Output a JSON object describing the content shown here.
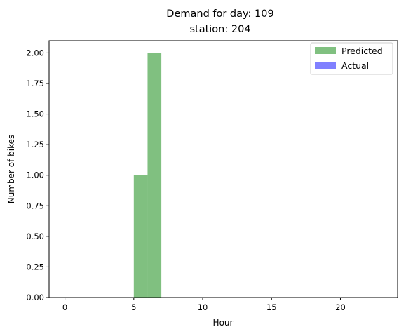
{
  "chart_data": {
    "type": "bar",
    "title_line1": "Demand for day: 109",
    "title_line2": "station: 204",
    "xlabel": "Hour",
    "ylabel": "Number of bikes",
    "xlim": [
      -1.15,
      24.15
    ],
    "ylim": [
      0,
      2.1
    ],
    "xticks": [
      0,
      5,
      10,
      15,
      20
    ],
    "xtick_labels": [
      "0",
      "5",
      "10",
      "15",
      "20"
    ],
    "yticks": [
      0,
      0.25,
      0.5,
      0.75,
      1.0,
      1.25,
      1.5,
      1.75,
      2.0
    ],
    "ytick_labels": [
      "0.00",
      "0.25",
      "0.50",
      "0.75",
      "1.00",
      "1.25",
      "1.50",
      "1.75",
      "2.00"
    ],
    "grid": false,
    "legend_position": "top-right",
    "series": [
      {
        "name": "Predicted",
        "color": "#80c080",
        "bins": [
          {
            "x0": 5,
            "x1": 6,
            "value": 1
          },
          {
            "x0": 6,
            "x1": 7,
            "value": 2
          }
        ]
      },
      {
        "name": "Actual",
        "color": "#8080ff",
        "bins": []
      }
    ]
  }
}
